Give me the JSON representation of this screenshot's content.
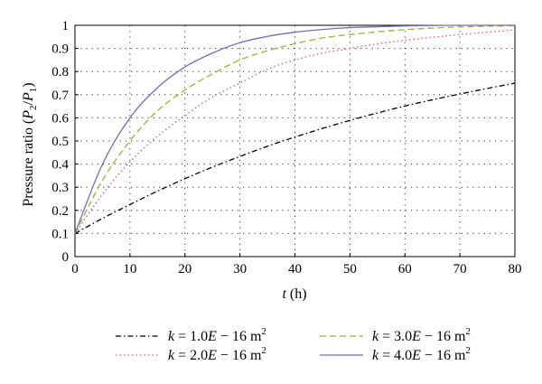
{
  "chart_data": {
    "type": "line",
    "ylabel": {
      "main": "Pressure ratio (",
      "p2": "P",
      "sub2": "2",
      "slash": "/",
      "p1": "P",
      "sub1": "1",
      "close": ")"
    },
    "xlabel": {
      "var": "t",
      "unit": " (h)"
    },
    "xlim": [
      0,
      80
    ],
    "ylim": [
      0,
      1
    ],
    "grid": true,
    "xticks": [
      "0",
      "10",
      "20",
      "30",
      "40",
      "50",
      "60",
      "70",
      "80"
    ],
    "yticks": [
      "0",
      "0.1",
      "0.2",
      "0.3",
      "0.4",
      "0.5",
      "0.6",
      "0.7",
      "0.8",
      "0.9",
      "1"
    ],
    "legend_position": "bottom",
    "series": [
      {
        "name": "k = 1.0E − 16 m²",
        "label": {
          "k": "k",
          "eq": " = 1.0",
          "E": "E",
          "rest": " − 16 m",
          "sup": "2"
        },
        "color": "#000000",
        "dash": "6 3 1.5 3",
        "x": [
          0,
          5,
          10,
          15,
          20,
          25,
          30,
          35,
          40,
          45,
          50,
          55,
          60,
          65,
          70,
          75,
          80
        ],
        "y": [
          0.1,
          0.165,
          0.225,
          0.283,
          0.337,
          0.387,
          0.433,
          0.477,
          0.517,
          0.554,
          0.589,
          0.621,
          0.651,
          0.678,
          0.703,
          0.727,
          0.75
        ]
      },
      {
        "name": "k = 2.0E − 16 m²",
        "label": {
          "k": "k",
          "eq": " = 2.0",
          "E": "E",
          "rest": " − 16 m",
          "sup": "2"
        },
        "color": "#c8607a",
        "dash": "1.5 3",
        "x": [
          0,
          5,
          10,
          15,
          20,
          25,
          30,
          35,
          40,
          45,
          50,
          55,
          60,
          65,
          70,
          75,
          80
        ],
        "y": [
          0.1,
          0.27,
          0.41,
          0.52,
          0.61,
          0.69,
          0.75,
          0.81,
          0.85,
          0.88,
          0.9,
          0.92,
          0.935,
          0.948,
          0.96,
          0.97,
          0.98
        ]
      },
      {
        "name": "k = 3.0E − 16 m²",
        "label": {
          "k": "k",
          "eq": " = 3.0",
          "E": "E",
          "rest": " − 16 m",
          "sup": "2"
        },
        "color": "#8db83a",
        "dash": "7 4",
        "x": [
          0,
          5,
          10,
          15,
          20,
          25,
          30,
          35,
          40,
          45,
          50,
          55,
          60,
          65,
          70,
          75,
          80
        ],
        "y": [
          0.1,
          0.33,
          0.5,
          0.63,
          0.72,
          0.79,
          0.85,
          0.89,
          0.92,
          0.945,
          0.96,
          0.972,
          0.981,
          0.988,
          0.993,
          0.996,
          0.998
        ]
      },
      {
        "name": "k = 4.0E − 16 m²",
        "label": {
          "k": "k",
          "eq": " = 4.0",
          "E": "E",
          "rest": " − 16 m",
          "sup": "2"
        },
        "color": "#7b6bb5",
        "dash": "",
        "x": [
          0,
          5,
          10,
          15,
          20,
          25,
          30,
          35,
          40,
          45,
          50,
          55,
          60,
          65,
          70,
          75,
          80
        ],
        "y": [
          0.1,
          0.4,
          0.6,
          0.73,
          0.82,
          0.88,
          0.925,
          0.952,
          0.97,
          0.982,
          0.99,
          0.994,
          0.997,
          0.999,
          1.0,
          1.0,
          1.0
        ]
      }
    ]
  }
}
